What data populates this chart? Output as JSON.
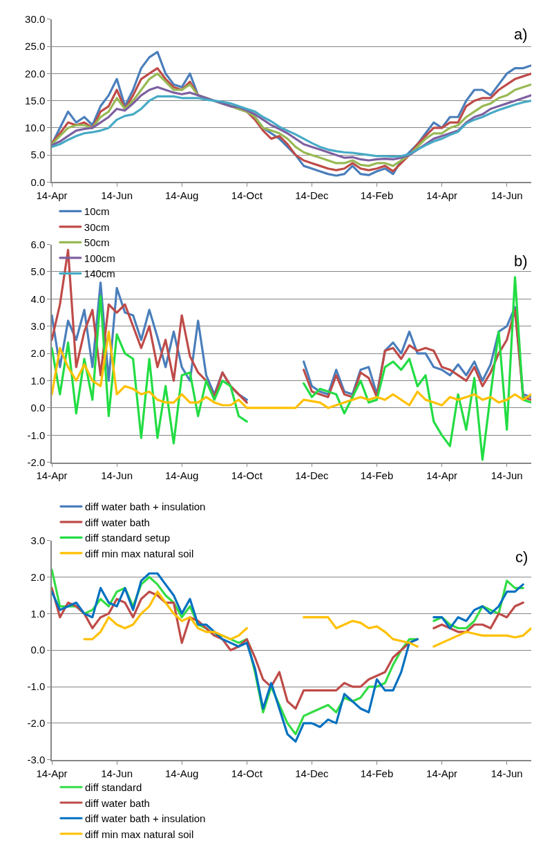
{
  "chart_data": [
    {
      "type": "line",
      "annotations": [
        "a)"
      ],
      "grid": "y",
      "legend": "bottom",
      "categories": [
        "14-Apr",
        null,
        null,
        null,
        null,
        null,
        null,
        null,
        "14-Jun",
        null,
        null,
        null,
        null,
        null,
        null,
        null,
        "14-Aug",
        null,
        null,
        null,
        null,
        null,
        null,
        null,
        "14-Oct",
        null,
        null,
        null,
        null,
        null,
        null,
        null,
        "14-Dec",
        null,
        null,
        null,
        null,
        null,
        null,
        null,
        "14-Feb",
        null,
        null,
        null,
        null,
        null,
        null,
        null,
        "14-Apr",
        null,
        null,
        null,
        null,
        null,
        null,
        null,
        "14-Jun",
        null,
        null,
        null
      ],
      "ylim": [
        0,
        30
      ],
      "yticks": [
        {
          "value": 0,
          "label": "0.0"
        },
        {
          "value": 5,
          "label": "5.0"
        },
        {
          "value": 10,
          "label": "10.0"
        },
        {
          "value": 15,
          "label": "15.0"
        },
        {
          "value": 20,
          "label": "20.0"
        },
        {
          "value": 25,
          "label": "25.0"
        },
        {
          "value": 30,
          "label": "30.0"
        }
      ],
      "series": [
        {
          "name": "10cm",
          "color": "#4a7ebb",
          "values": [
            7,
            10,
            13,
            11,
            12,
            10.5,
            14,
            16,
            19,
            14,
            17,
            21,
            23,
            24,
            20,
            18,
            17.5,
            20,
            16,
            15.5,
            15,
            14.5,
            14,
            13.5,
            13,
            12,
            10,
            9,
            8,
            6.5,
            5,
            3,
            2.5,
            2,
            1.5,
            1.2,
            1.5,
            3,
            1.5,
            1.3,
            2,
            2.5,
            1.5,
            4,
            5.5,
            7,
            9,
            11,
            10,
            12,
            12,
            15,
            17,
            17,
            16,
            18,
            20,
            21,
            21,
            21.5
          ]
        },
        {
          "name": "30cm",
          "color": "#be4b48",
          "values": [
            7.2,
            9,
            11,
            10.5,
            11,
            10,
            13,
            14,
            17,
            13.5,
            16,
            19,
            20,
            21,
            19,
            17.5,
            17,
            18.5,
            16,
            15.5,
            15,
            14.5,
            14,
            13.5,
            13,
            11.5,
            9.5,
            8,
            8.5,
            7,
            5,
            4,
            3.5,
            3,
            2.5,
            2.2,
            2.5,
            3.5,
            2.5,
            2.2,
            2.5,
            3,
            2,
            3.5,
            5,
            7,
            8.5,
            10,
            10,
            11,
            11,
            14,
            15,
            15.5,
            15.5,
            17,
            18,
            19,
            19.5,
            20
          ]
        },
        {
          "name": "50cm",
          "color": "#98b954",
          "values": [
            7,
            8.5,
            10,
            10.5,
            10.5,
            10,
            12,
            13,
            15.5,
            13.5,
            15,
            17,
            19,
            20,
            18.5,
            17,
            17,
            18,
            16,
            15.5,
            15,
            14.5,
            14,
            13.5,
            13,
            12,
            10,
            9.5,
            9,
            8,
            6.5,
            5.5,
            5,
            4.5,
            4,
            3.5,
            3.5,
            4,
            3.2,
            3,
            3.5,
            3.5,
            3,
            4,
            5,
            6.5,
            8,
            9,
            9,
            10,
            10.5,
            12,
            13,
            14,
            14.5,
            15.5,
            16,
            17,
            17.5,
            18
          ]
        },
        {
          "name": "100cm",
          "color": "#7d60a0",
          "values": [
            6.8,
            7.5,
            8.5,
            9.5,
            9.8,
            10,
            11,
            12,
            13.5,
            13.2,
            14.5,
            16,
            17,
            17.5,
            17,
            16.5,
            16.2,
            16.5,
            16,
            15.5,
            15,
            14.5,
            14,
            13.8,
            13.2,
            12.5,
            11.5,
            10.5,
            9.8,
            9,
            8,
            7,
            6.5,
            6,
            5.5,
            5,
            4.5,
            4.6,
            4.2,
            4,
            4.2,
            4.3,
            4.2,
            4.5,
            5,
            6,
            7,
            8,
            8.5,
            9,
            9.5,
            11,
            12,
            12.5,
            13.5,
            14,
            14.5,
            15,
            15.5,
            16
          ]
        },
        {
          "name": "140cm",
          "color": "#46aac5",
          "values": [
            6.5,
            7,
            7.8,
            8.5,
            9,
            9.2,
            9.5,
            10,
            11.5,
            12.2,
            12.5,
            13.5,
            15,
            15.8,
            15.8,
            15.8,
            15.5,
            15.5,
            15.5,
            15.2,
            15,
            14.8,
            14.5,
            14,
            13.5,
            13,
            12,
            11.2,
            10.2,
            9.5,
            8.8,
            8,
            7.2,
            6.5,
            6,
            5.7,
            5.5,
            5.4,
            5.2,
            5,
            4.8,
            4.8,
            4.7,
            4.8,
            5.2,
            6,
            6.8,
            7.5,
            8,
            8.7,
            9.3,
            10.8,
            11.5,
            12,
            12.7,
            13.3,
            13.8,
            14.3,
            14.7,
            15
          ]
        }
      ]
    },
    {
      "type": "line",
      "annotations": [
        "b)"
      ],
      "grid": "y",
      "legend": "bottom",
      "categories": [
        "14-Apr",
        null,
        null,
        null,
        null,
        null,
        null,
        null,
        "14-Jun",
        null,
        null,
        null,
        null,
        null,
        null,
        null,
        "14-Aug",
        null,
        null,
        null,
        null,
        null,
        null,
        null,
        "14-Oct",
        null,
        null,
        null,
        null,
        null,
        null,
        null,
        "14-Dec",
        null,
        null,
        null,
        null,
        null,
        null,
        null,
        "14-Feb",
        null,
        null,
        null,
        null,
        null,
        null,
        null,
        "14-Apr",
        null,
        null,
        null,
        null,
        null,
        null,
        null,
        "14-Jun",
        null,
        null,
        null
      ],
      "ylim": [
        -2,
        6
      ],
      "yticks": [
        {
          "value": -2,
          "label": "-2.0"
        },
        {
          "value": -1,
          "label": "-1.0"
        },
        {
          "value": 0,
          "label": "0.0"
        },
        {
          "value": 1,
          "label": "1.0"
        },
        {
          "value": 2,
          "label": "2.0"
        },
        {
          "value": 3,
          "label": "3.0"
        },
        {
          "value": 4,
          "label": "4.0"
        },
        {
          "value": 5,
          "label": "5.0"
        },
        {
          "value": 6,
          "label": "6.0"
        }
      ],
      "series": [
        {
          "name": "diff water bath + insulation",
          "color": "#4a7ebb",
          "values": [
            3.4,
            1.5,
            3.2,
            2.5,
            3.6,
            1.5,
            4.6,
            1,
            4.4,
            3.5,
            3.4,
            2.5,
            3.6,
            2.6,
            1.5,
            2.8,
            1.5,
            1,
            3.2,
            1.2,
            0.5,
            1.3,
            0.8,
            0.5,
            0.3,
            null,
            null,
            null,
            null,
            null,
            null,
            1.7,
            0.8,
            0.6,
            0.5,
            1.4,
            0.6,
            0.5,
            1.4,
            1.5,
            0.5,
            2.1,
            2.4,
            2,
            2.8,
            2,
            2,
            1.5,
            1.4,
            1.2,
            1.6,
            1.2,
            1.7,
            1,
            1.6,
            2.8,
            3,
            3.7,
            0.5,
            0.4
          ]
        },
        {
          "name": "diff water bath",
          "color": "#be4b48",
          "values": [
            2.5,
            3.8,
            5.8,
            1.5,
            2.8,
            3.6,
            1.2,
            3.8,
            3.5,
            3.8,
            3,
            2.2,
            3,
            1.5,
            2.5,
            1,
            3.4,
            1.9,
            1.3,
            1,
            0.4,
            1.3,
            0.8,
            0.5,
            0.2,
            null,
            null,
            null,
            null,
            null,
            null,
            1.4,
            0.6,
            0.5,
            0.4,
            1.2,
            0.5,
            0.4,
            1.3,
            1.1,
            0.4,
            2.1,
            2.2,
            1.8,
            2.3,
            2.1,
            2.2,
            2.1,
            1.5,
            1.4,
            1.2,
            1,
            1.5,
            0.8,
            1.3,
            2,
            2.5,
            3.6,
            0.4,
            0.3
          ]
        },
        {
          "name": "diff standard setup",
          "color": "#22dd44",
          "values": [
            2.2,
            0.5,
            2.4,
            -0.2,
            1.8,
            0.3,
            4.1,
            -0.3,
            2.7,
            2,
            1.8,
            -1.1,
            1.8,
            -1.1,
            0.8,
            -1.3,
            1.2,
            1.3,
            -0.3,
            1,
            0.3,
            1,
            0.8,
            -0.3,
            -0.5,
            null,
            null,
            null,
            null,
            null,
            null,
            0.9,
            0.4,
            0.7,
            0.6,
            0.5,
            -0.2,
            0.4,
            1,
            0.2,
            0.3,
            1.5,
            1.7,
            1.4,
            1.8,
            0.8,
            1.2,
            -0.5,
            -1,
            -1.4,
            0.5,
            -0.8,
            1.1,
            -1.9,
            0.5,
            2.8,
            -0.8,
            4.8,
            0.3,
            0.2
          ]
        },
        {
          "name": "diff min max natural soil",
          "color": "#ffc000",
          "values": [
            0.5,
            2.2,
            1.5,
            1,
            1.6,
            1,
            0.8,
            2.8,
            0.5,
            0.8,
            0.7,
            0.5,
            0.6,
            0.3,
            0.2,
            0.2,
            0.5,
            0.2,
            0.2,
            0.4,
            0.2,
            0.1,
            0.1,
            0.3,
            0,
            0,
            0,
            0,
            0,
            0,
            0,
            0.3,
            0.25,
            0.2,
            0,
            0.1,
            0.2,
            0.3,
            0.4,
            0.3,
            0.4,
            0.3,
            0.5,
            0.3,
            0.1,
            0.6,
            0.3,
            0.2,
            0.1,
            0.4,
            0.3,
            0.4,
            0.5,
            0.3,
            0.4,
            0.2,
            0.3,
            0.5,
            0.3,
            0.5
          ]
        }
      ]
    },
    {
      "type": "line",
      "annotations": [
        "c)"
      ],
      "grid": "y",
      "legend": "bottom",
      "categories": [
        "14-Apr",
        null,
        null,
        null,
        null,
        null,
        null,
        null,
        "14-Jun",
        null,
        null,
        null,
        null,
        null,
        null,
        null,
        "14-Aug",
        null,
        null,
        null,
        null,
        null,
        null,
        null,
        "14-Oct",
        null,
        null,
        null,
        null,
        null,
        null,
        null,
        "14-Dec",
        null,
        null,
        null,
        null,
        null,
        null,
        null,
        "14-Feb",
        null,
        null,
        null,
        null,
        null,
        null,
        null,
        "14-Apr",
        null,
        null,
        null,
        null,
        null,
        null,
        null,
        "14-Jun",
        null,
        null,
        null
      ],
      "ylim": [
        -3,
        3
      ],
      "yticks": [
        {
          "value": -3,
          "label": "-3.0"
        },
        {
          "value": -2,
          "label": "-2.0"
        },
        {
          "value": -1,
          "label": "-1.0"
        },
        {
          "value": 0,
          "label": "0.0"
        },
        {
          "value": 1,
          "label": "1.0"
        },
        {
          "value": 2,
          "label": "2.0"
        },
        {
          "value": 3,
          "label": "3.0"
        }
      ],
      "series": [
        {
          "name": "diff standard",
          "color": "#33dd44",
          "values": [
            2.2,
            1.2,
            1.2,
            1.2,
            1,
            1.1,
            1.4,
            1.2,
            1.6,
            1.7,
            1.2,
            1.8,
            2,
            1.8,
            1.5,
            1.3,
            0.9,
            1.2,
            0.7,
            0.6,
            0.4,
            0.4,
            0.3,
            0.2,
            0.3,
            -0.6,
            -1.7,
            -1,
            -1.5,
            -2,
            -2.3,
            -1.8,
            -1.7,
            -1.6,
            -1.5,
            -1.7,
            -1.3,
            -1.4,
            -1.3,
            -1,
            -1,
            -0.9,
            -0.4,
            0,
            0.3,
            0.3,
            null,
            0.8,
            0.9,
            0.7,
            0.6,
            0.6,
            0.8,
            1.2,
            1.1,
            1,
            1.9,
            1.7,
            1.7,
            null
          ]
        },
        {
          "name": "diff water bath",
          "color": "#be4b48",
          "values": [
            1.7,
            0.9,
            1.3,
            1.2,
            1,
            0.6,
            0.9,
            1,
            1.4,
            1.3,
            0.9,
            1.4,
            1.6,
            1.5,
            1.3,
            1.3,
            0.2,
            0.9,
            0.8,
            0.6,
            0.4,
            0.3,
            0,
            0.1,
            0.3,
            -0.2,
            -0.8,
            -1,
            -0.6,
            -1.4,
            -1.6,
            -1.1,
            -1.1,
            -1.1,
            -1.1,
            -1.1,
            -0.9,
            -1,
            -1,
            -0.8,
            -0.7,
            -0.6,
            -0.2,
            0,
            0.2,
            0.3,
            null,
            0.6,
            0.7,
            0.6,
            0.5,
            0.5,
            0.7,
            0.7,
            0.6,
            1,
            0.9,
            1.2,
            1.3,
            null
          ]
        },
        {
          "name": "diff water bath + insulation",
          "color": "#0070c0",
          "values": [
            1.6,
            1.1,
            1.2,
            1.3,
            1,
            0.9,
            1.7,
            1.3,
            1.2,
            1.7,
            1.1,
            1.9,
            2.1,
            2.1,
            1.8,
            1.5,
            1,
            1.4,
            0.7,
            0.7,
            0.5,
            0.3,
            0.2,
            0.1,
            0.2,
            -0.5,
            -1.6,
            -0.9,
            -1.6,
            -2.3,
            -2.5,
            -2,
            -2,
            -2.1,
            -1.9,
            -2,
            -1.2,
            -1.4,
            -1.6,
            -1.7,
            -0.8,
            -1.1,
            -1.1,
            -0.6,
            0.2,
            0.3,
            null,
            0.9,
            0.9,
            0.6,
            0.9,
            0.8,
            1.1,
            1.2,
            1,
            1.2,
            1.6,
            1.6,
            1.8,
            null
          ]
        },
        {
          "name": "diff min max natural soil",
          "color": "#ffc000",
          "values": [
            null,
            null,
            null,
            null,
            0.3,
            0.3,
            0.5,
            0.9,
            0.7,
            0.6,
            0.7,
            1,
            1.2,
            1.6,
            1.3,
            1,
            0.8,
            0.9,
            0.6,
            0.5,
            0.5,
            0.4,
            0.3,
            0.4,
            0.6,
            null,
            null,
            null,
            null,
            null,
            null,
            0.9,
            0.9,
            0.9,
            0.9,
            0.6,
            0.7,
            0.8,
            0.75,
            0.6,
            0.65,
            0.5,
            0.3,
            0.25,
            0.2,
            0.1,
            null,
            0.1,
            0.2,
            0.3,
            0.4,
            0.5,
            0.45,
            0.4,
            0.4,
            0.4,
            0.4,
            0.35,
            0.4,
            0.6
          ]
        }
      ]
    }
  ]
}
